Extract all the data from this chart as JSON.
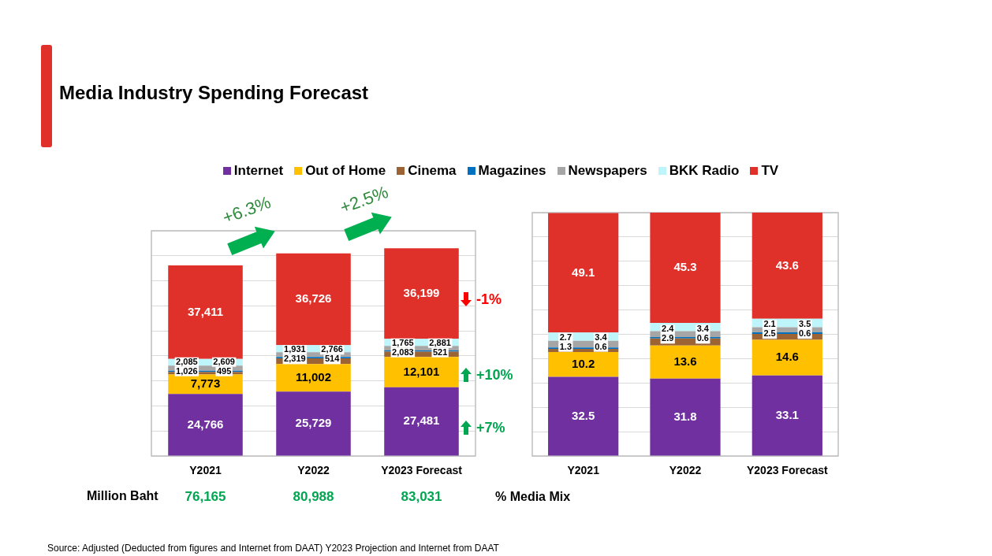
{
  "chart_data": [
    {
      "type": "bar",
      "title": "Media Industry Spending Forecast",
      "stacked": true,
      "categories": [
        "Y2021",
        "Y2022",
        "Y2023 Forecast"
      ],
      "series": [
        {
          "name": "Internet",
          "color": "#7030a0",
          "values": [
            24766,
            25729,
            27481
          ],
          "value_labels": [
            "24,766",
            "25,729",
            "27,481"
          ]
        },
        {
          "name": "Out of Home",
          "color": "#ffc000",
          "values": [
            7773,
            11002,
            12101
          ],
          "value_labels": [
            "7,773",
            "11,002",
            "12,101"
          ]
        },
        {
          "name": "Cinema",
          "color": "#9c6434",
          "values": [
            1026,
            2319,
            2083
          ],
          "value_labels": [
            "1,026",
            "2,319",
            "2,083"
          ]
        },
        {
          "name": "Magazines",
          "color": "#0070c0",
          "values": [
            495,
            514,
            521
          ],
          "value_labels": [
            "495",
            "514",
            "521"
          ]
        },
        {
          "name": "Newspapers",
          "color": "#a6a6a6",
          "values": [
            2085,
            1931,
            1765
          ],
          "value_labels": [
            "2,085",
            "1,931",
            "1,765"
          ]
        },
        {
          "name": "BKK Radio",
          "color": "#bdf5fb",
          "values": [
            2609,
            2766,
            2881
          ],
          "value_labels": [
            "2,609",
            "2,766",
            "2,881"
          ]
        },
        {
          "name": "TV",
          "color": "#e0302a",
          "values": [
            37411,
            36726,
            36199
          ],
          "value_labels": [
            "37,411",
            "36,726",
            "36,199"
          ]
        }
      ],
      "ylim": [
        0,
        90000
      ],
      "yticks": [
        {
          "value": 0,
          "label": null
        },
        {
          "value": 10000,
          "label": null
        },
        {
          "value": 20000,
          "label": null
        },
        {
          "value": 30000,
          "label": null
        },
        {
          "value": 40000,
          "label": null
        },
        {
          "value": 50000,
          "label": null
        },
        {
          "value": 60000,
          "label": null
        },
        {
          "value": 70000,
          "label": null
        },
        {
          "value": 80000,
          "label": null
        },
        {
          "value": 90000,
          "label": null
        }
      ],
      "grid": "y",
      "tick_labels": "x",
      "legend": "top",
      "totals": [
        "76,165",
        "80,988",
        "83,031"
      ],
      "annotations": [
        "+6.3%",
        "+2.5%",
        "-1%",
        "+10%",
        "+7%",
        "Million Baht",
        "Source: Adjusted (Deducted from figures and Internet from DAAT) Y2023 Projection and Internet from DAAT"
      ]
    },
    {
      "type": "bar",
      "stacked": true,
      "categories": [
        "Y2021",
        "Y2022",
        "Y2023 Forecast"
      ],
      "series": [
        {
          "color": "#7030a0",
          "values": [
            32.5,
            31.8,
            33.1
          ]
        },
        {
          "color": "#ffc000",
          "values": [
            10.2,
            13.6,
            14.6
          ]
        },
        {
          "color": "#9c6434",
          "values": [
            1.3,
            2.9,
            2.5
          ]
        },
        {
          "color": "#0070c0",
          "values": [
            0.6,
            0.6,
            0.6
          ]
        },
        {
          "color": "#a6a6a6",
          "values": [
            2.7,
            2.4,
            2.1
          ]
        },
        {
          "color": "#bdf5fb",
          "values": [
            3.4,
            3.4,
            3.5
          ]
        },
        {
          "color": "#e0302a",
          "values": [
            49.1,
            45.3,
            43.6
          ]
        }
      ],
      "ylim": [
        0,
        100
      ],
      "yticks": [
        {
          "value": 0,
          "label": null
        },
        {
          "value": 10,
          "label": null
        },
        {
          "value": 20,
          "label": null
        },
        {
          "value": 30,
          "label": null
        },
        {
          "value": 40,
          "label": null
        },
        {
          "value": 50,
          "label": null
        },
        {
          "value": 60,
          "label": null
        },
        {
          "value": 70,
          "label": null
        },
        {
          "value": 80,
          "label": null
        },
        {
          "value": 90,
          "label": null
        },
        {
          "value": 100,
          "label": null
        }
      ],
      "grid": "y",
      "tick_labels": "x",
      "data_labels": true,
      "annotations": [
        "% Media Mix"
      ]
    }
  ]
}
